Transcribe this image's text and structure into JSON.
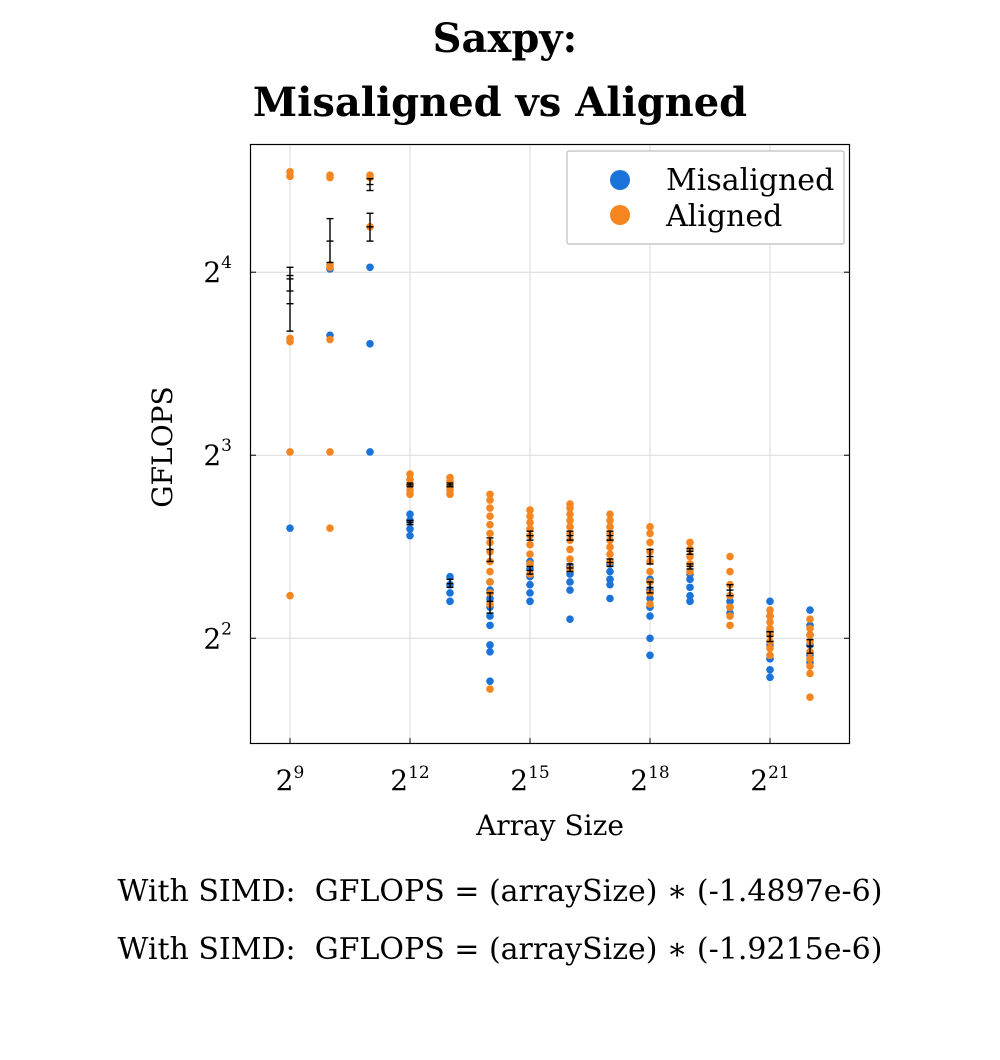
{
  "chart_data": {
    "type": "scatter",
    "title": [
      "Saxpy:",
      "Misaligned vs Aligned"
    ],
    "xlabel": "Array Size",
    "ylabel": "GFLOPS",
    "x_scale": "log2",
    "y_scale": "log2",
    "xlim": [
      256,
      8388608
    ],
    "ylim": [
      2.68,
      26.0
    ],
    "x_ticks": [
      {
        "base": "2",
        "exp": "9",
        "value": 512
      },
      {
        "base": "2",
        "exp": "12",
        "value": 4096
      },
      {
        "base": "2",
        "exp": "15",
        "value": 32768
      },
      {
        "base": "2",
        "exp": "18",
        "value": 262144
      },
      {
        "base": "2",
        "exp": "21",
        "value": 2097152
      }
    ],
    "y_ticks": [
      {
        "base": "2",
        "exp": "2",
        "value": 4
      },
      {
        "base": "2",
        "exp": "3",
        "value": 8
      },
      {
        "base": "2",
        "exp": "4",
        "value": 16
      }
    ],
    "grid": true,
    "legend_position": "top-right",
    "series": [
      {
        "name": "Misaligned",
        "color": "#1a73d8",
        "points": [
          [
            512,
            6.07
          ],
          [
            1024,
            12.6
          ],
          [
            1024,
            16.2
          ],
          [
            2048,
            8.1
          ],
          [
            2048,
            12.2
          ],
          [
            2048,
            16.3
          ],
          [
            4096,
            5.9
          ],
          [
            4096,
            6.05
          ],
          [
            4096,
            6.25
          ],
          [
            4096,
            6.4
          ],
          [
            8192,
            4.6
          ],
          [
            8192,
            4.75
          ],
          [
            8192,
            4.9
          ],
          [
            8192,
            5.05
          ],
          [
            16384,
            3.4
          ],
          [
            16384,
            3.8
          ],
          [
            16384,
            3.9
          ],
          [
            16384,
            4.2
          ],
          [
            16384,
            4.35
          ],
          [
            16384,
            4.5
          ],
          [
            16384,
            4.65
          ],
          [
            16384,
            4.8
          ],
          [
            16384,
            4.95
          ],
          [
            32768,
            4.6
          ],
          [
            32768,
            4.75
          ],
          [
            32768,
            4.9
          ],
          [
            32768,
            5.05
          ],
          [
            32768,
            5.2
          ],
          [
            32768,
            5.35
          ],
          [
            65536,
            4.3
          ],
          [
            65536,
            4.8
          ],
          [
            65536,
            4.95
          ],
          [
            65536,
            5.1
          ],
          [
            65536,
            5.25
          ],
          [
            131072,
            4.65
          ],
          [
            131072,
            4.9
          ],
          [
            131072,
            5.0
          ],
          [
            131072,
            5.15
          ],
          [
            131072,
            5.3
          ],
          [
            262144,
            3.75
          ],
          [
            262144,
            4.0
          ],
          [
            262144,
            4.35
          ],
          [
            262144,
            4.5
          ],
          [
            262144,
            4.65
          ],
          [
            262144,
            4.8
          ],
          [
            262144,
            5.0
          ],
          [
            524288,
            4.6
          ],
          [
            524288,
            4.7
          ],
          [
            524288,
            4.85
          ],
          [
            524288,
            5.0
          ],
          [
            524288,
            5.1
          ],
          [
            1048576,
            4.4
          ],
          [
            1048576,
            4.5
          ],
          [
            1048576,
            4.6
          ],
          [
            1048576,
            4.7
          ],
          [
            2097152,
            3.45
          ],
          [
            2097152,
            3.55
          ],
          [
            2097152,
            3.7
          ],
          [
            2097152,
            3.9
          ],
          [
            2097152,
            4.1
          ],
          [
            2097152,
            4.35
          ],
          [
            2097152,
            4.6
          ],
          [
            4194304,
            3.65
          ],
          [
            4194304,
            3.75
          ],
          [
            4194304,
            3.9
          ],
          [
            4194304,
            4.05
          ],
          [
            4194304,
            4.2
          ],
          [
            4194304,
            4.45
          ]
        ]
      },
      {
        "name": "Aligned",
        "color": "#f5851f",
        "points": [
          [
            512,
            4.7
          ],
          [
            512,
            8.1
          ],
          [
            512,
            12.3
          ],
          [
            512,
            12.45
          ],
          [
            512,
            23.0
          ],
          [
            512,
            23.4
          ],
          [
            1024,
            6.07
          ],
          [
            1024,
            8.1
          ],
          [
            1024,
            12.4
          ],
          [
            1024,
            16.3
          ],
          [
            1024,
            16.45
          ],
          [
            1024,
            22.9
          ],
          [
            1024,
            23.1
          ],
          [
            2048,
            19.0
          ],
          [
            2048,
            22.9
          ],
          [
            2048,
            23.1
          ],
          [
            4096,
            6.9
          ],
          [
            4096,
            7.0
          ],
          [
            4096,
            7.15
          ],
          [
            4096,
            7.3
          ],
          [
            4096,
            7.45
          ],
          [
            8192,
            6.9
          ],
          [
            8192,
            7.0
          ],
          [
            8192,
            7.1
          ],
          [
            8192,
            7.25
          ],
          [
            8192,
            7.35
          ],
          [
            16384,
            3.3
          ],
          [
            16384,
            4.55
          ],
          [
            16384,
            4.75
          ],
          [
            16384,
            4.95
          ],
          [
            16384,
            5.15
          ],
          [
            16384,
            5.35
          ],
          [
            16384,
            5.55
          ],
          [
            16384,
            5.75
          ],
          [
            16384,
            5.95
          ],
          [
            16384,
            6.15
          ],
          [
            16384,
            6.35
          ],
          [
            16384,
            6.55
          ],
          [
            16384,
            6.75
          ],
          [
            16384,
            6.9
          ],
          [
            32768,
            5.1
          ],
          [
            32768,
            5.3
          ],
          [
            32768,
            5.5
          ],
          [
            32768,
            5.7
          ],
          [
            32768,
            5.9
          ],
          [
            32768,
            6.05
          ],
          [
            32768,
            6.2
          ],
          [
            32768,
            6.35
          ],
          [
            32768,
            6.5
          ],
          [
            65536,
            5.2
          ],
          [
            65536,
            5.4
          ],
          [
            65536,
            5.6
          ],
          [
            65536,
            5.8
          ],
          [
            65536,
            5.95
          ],
          [
            65536,
            6.1
          ],
          [
            65536,
            6.25
          ],
          [
            65536,
            6.4
          ],
          [
            65536,
            6.55
          ],
          [
            65536,
            6.65
          ],
          [
            131072,
            5.35
          ],
          [
            131072,
            5.5
          ],
          [
            131072,
            5.65
          ],
          [
            131072,
            5.8
          ],
          [
            131072,
            5.95
          ],
          [
            131072,
            6.1
          ],
          [
            131072,
            6.25
          ],
          [
            131072,
            6.4
          ],
          [
            262144,
            4.55
          ],
          [
            262144,
            4.75
          ],
          [
            262144,
            4.95
          ],
          [
            262144,
            5.15
          ],
          [
            262144,
            5.35
          ],
          [
            262144,
            5.55
          ],
          [
            262144,
            5.75
          ],
          [
            262144,
            5.95
          ],
          [
            262144,
            6.1
          ],
          [
            524288,
            5.15
          ],
          [
            524288,
            5.3
          ],
          [
            524288,
            5.45
          ],
          [
            524288,
            5.6
          ],
          [
            524288,
            5.75
          ],
          [
            1048576,
            4.2
          ],
          [
            1048576,
            4.35
          ],
          [
            1048576,
            4.5
          ],
          [
            1048576,
            4.7
          ],
          [
            1048576,
            4.9
          ],
          [
            1048576,
            5.15
          ],
          [
            1048576,
            5.45
          ],
          [
            2097152,
            3.75
          ],
          [
            2097152,
            3.85
          ],
          [
            2097152,
            3.95
          ],
          [
            2097152,
            4.05
          ],
          [
            2097152,
            4.15
          ],
          [
            2097152,
            4.25
          ],
          [
            2097152,
            4.35
          ],
          [
            2097152,
            4.45
          ],
          [
            4194304,
            3.2
          ],
          [
            4194304,
            3.5
          ],
          [
            4194304,
            3.6
          ],
          [
            4194304,
            3.7
          ],
          [
            4194304,
            3.8
          ],
          [
            4194304,
            3.95
          ],
          [
            4194304,
            4.05
          ],
          [
            4194304,
            4.15
          ],
          [
            4194304,
            4.3
          ]
        ]
      }
    ],
    "error_bars": [
      {
        "x": 512,
        "low": 12.8,
        "mid": 14.2,
        "high": 15.8
      },
      {
        "x": 512,
        "low": 14.9,
        "mid": 15.6,
        "high": 16.3
      },
      {
        "x": 1024,
        "low": 16.6,
        "mid": 18.0,
        "high": 19.6
      },
      {
        "x": 2048,
        "low": 18.0,
        "mid": 19.0,
        "high": 20.0
      },
      {
        "x": 2048,
        "low": 21.8,
        "mid": 22.3,
        "high": 22.8
      },
      {
        "x": 4096,
        "low": 6.15,
        "mid": 6.2,
        "high": 6.25
      },
      {
        "x": 4096,
        "low": 7.1,
        "mid": 7.15,
        "high": 7.2
      },
      {
        "x": 8192,
        "low": 4.85,
        "mid": 4.92,
        "high": 5.0
      },
      {
        "x": 8192,
        "low": 7.1,
        "mid": 7.15,
        "high": 7.2
      },
      {
        "x": 16384,
        "low": 4.4,
        "mid": 4.6,
        "high": 4.75
      },
      {
        "x": 16384,
        "low": 5.35,
        "mid": 5.6,
        "high": 5.85
      },
      {
        "x": 32768,
        "low": 5.1,
        "mid": 5.17,
        "high": 5.25
      },
      {
        "x": 32768,
        "low": 5.8,
        "mid": 5.9,
        "high": 6.0
      },
      {
        "x": 65536,
        "low": 5.15,
        "mid": 5.22,
        "high": 5.3
      },
      {
        "x": 65536,
        "low": 5.8,
        "mid": 5.9,
        "high": 6.0
      },
      {
        "x": 131072,
        "low": 5.25,
        "mid": 5.33,
        "high": 5.4
      },
      {
        "x": 131072,
        "low": 5.8,
        "mid": 5.9,
        "high": 6.0
      },
      {
        "x": 262144,
        "low": 4.75,
        "mid": 4.85,
        "high": 4.95
      },
      {
        "x": 262144,
        "low": 5.3,
        "mid": 5.45,
        "high": 5.6
      },
      {
        "x": 524288,
        "low": 5.2,
        "mid": 5.25,
        "high": 5.3
      },
      {
        "x": 524288,
        "low": 5.5,
        "mid": 5.56,
        "high": 5.62
      },
      {
        "x": 1048576,
        "low": 4.7,
        "mid": 4.8,
        "high": 4.9
      },
      {
        "x": 2097152,
        "low": 3.95,
        "mid": 4.03,
        "high": 4.1
      },
      {
        "x": 4194304,
        "low": 3.78,
        "mid": 3.88,
        "high": 3.98
      }
    ]
  },
  "annotations": [
    "With SIMD:  GFLOPS = (arraySize) ∗ (-1.4897e-6)",
    "With SIMD:  GFLOPS = (arraySize) ∗ (-1.9215e-6)"
  ]
}
